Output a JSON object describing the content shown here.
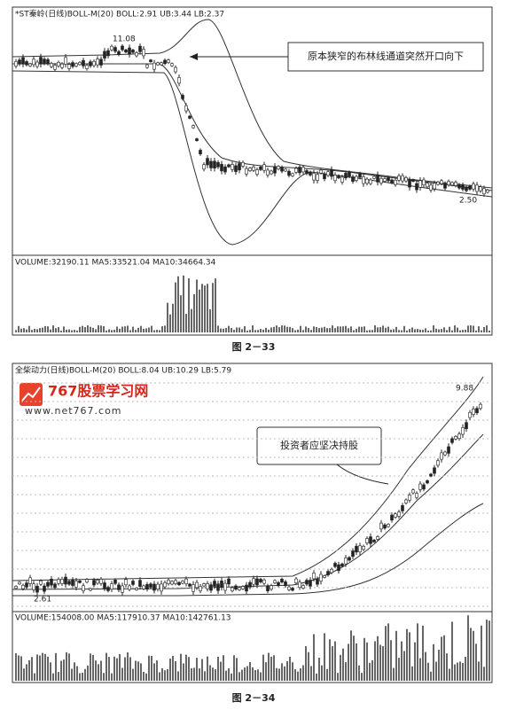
{
  "figures": [
    {
      "header": "*ST秦岭(日线)BOLL-M(20) BOLL:2.91 UB:3.44 LB:2.37",
      "price_labels": [
        "11.08",
        "2.50"
      ],
      "annotation": "原本狭窄的布林线通道突然开口向下",
      "volume_header": "VOLUME:32190.11 MA5:33521.04 MA10:34664.34",
      "caption": "图 2－33"
    },
    {
      "header": "全柴动力(日线)BOLL-M(20) BOLL:8.04 UB:10.29 LB:5.79",
      "price_labels": [
        "9.88",
        "2.61"
      ],
      "annotation": "投资者应坚决持股",
      "volume_header": "VOLUME:154008.00 MA5:117910.37 MA10:142761.13",
      "caption": "图 2－34"
    }
  ],
  "watermark": {
    "title": "767股票学习网",
    "url": "www.net767.com"
  }
}
